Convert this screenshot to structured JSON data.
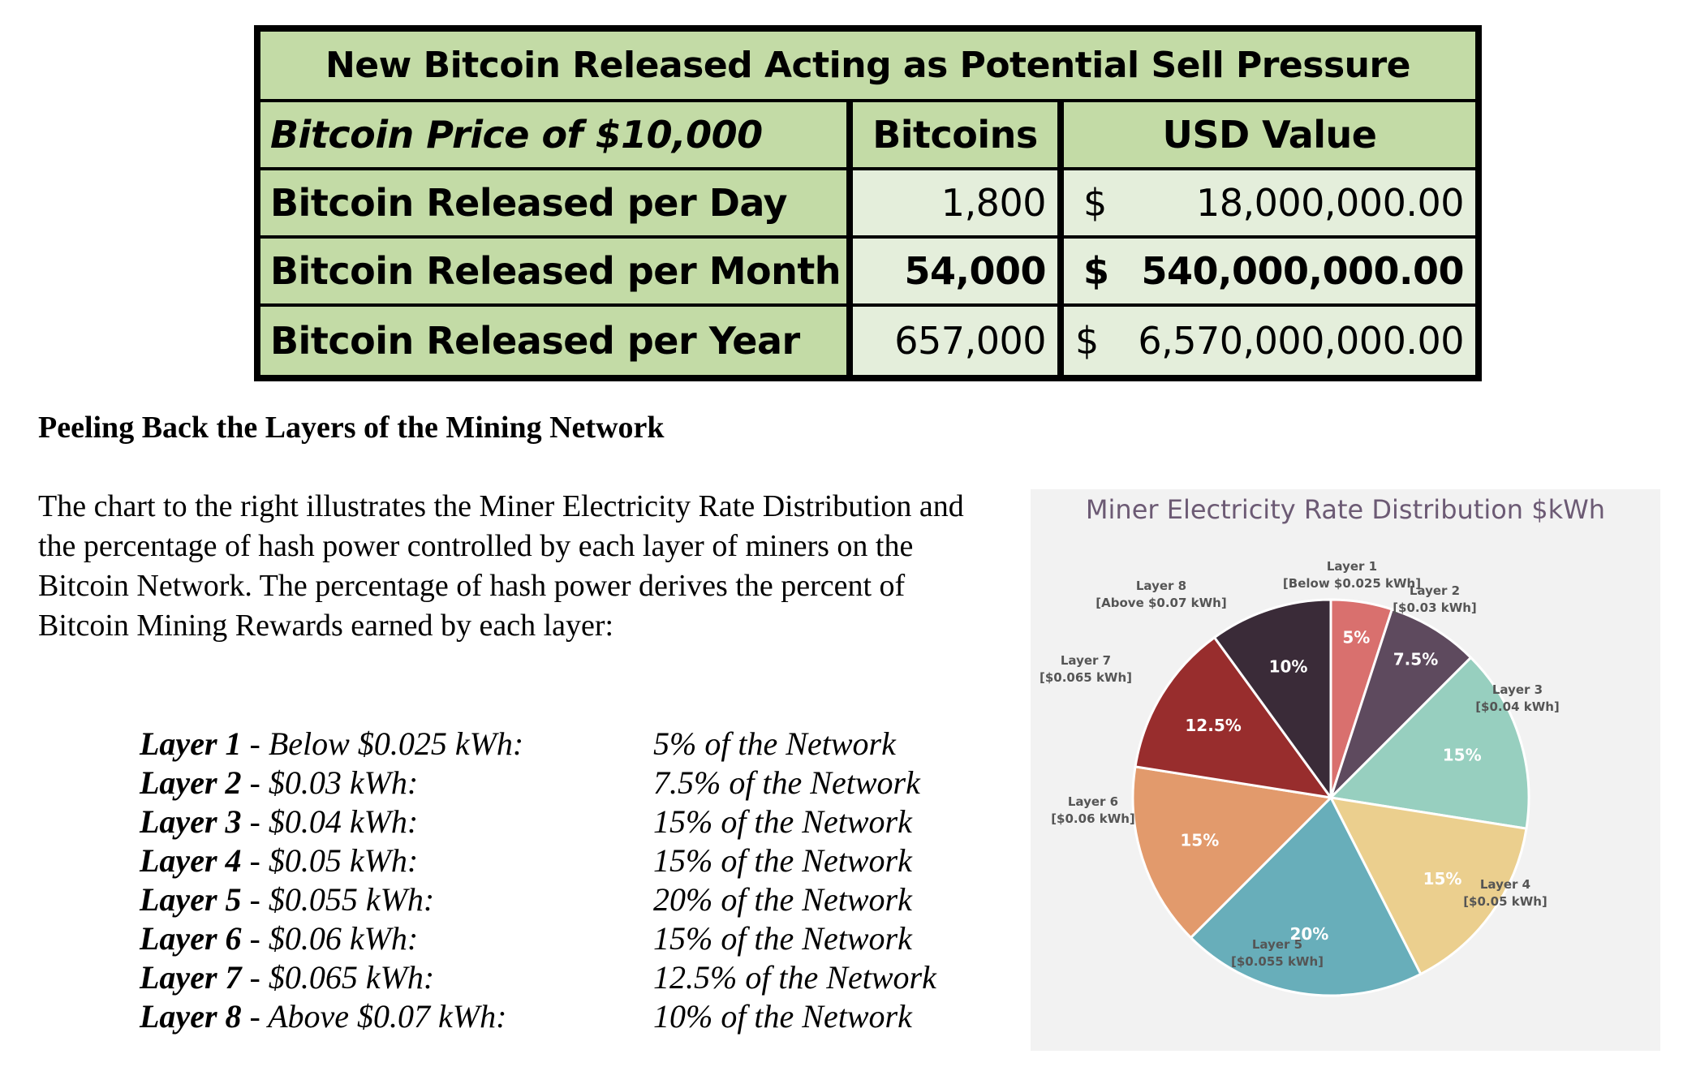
{
  "table": {
    "title": "New Bitcoin Released Acting as Potential Sell Pressure",
    "header": {
      "label": "Bitcoin Price of $10,000",
      "col_bitcoins": "Bitcoins",
      "col_usd": "USD Value"
    },
    "rows": [
      {
        "label": "Bitcoin Released per Day",
        "bitcoins": "1,800",
        "currency": "$",
        "usd": "18,000,000.00"
      },
      {
        "label": "Bitcoin Released per Month",
        "bitcoins": "54,000",
        "currency": "$",
        "usd": "540,000,000.00"
      },
      {
        "label": "Bitcoin Released per Year",
        "bitcoins": "657,000",
        "currency": "$",
        "usd": "6,570,000,000.00"
      }
    ],
    "colors": {
      "header_green": "#c3dba6",
      "cell_light": "#e4eedb"
    }
  },
  "section": {
    "heading": "Peeling Back the Layers of the Mining Network",
    "paragraph": "The chart to the right illustrates the Miner Electricity Rate Distribution and the percentage of hash power controlled by each layer of miners on the Bitcoin Network. The percentage of hash power derives the percent of Bitcoin Mining Rewards earned by each layer:"
  },
  "layers": [
    {
      "name": "Layer 1",
      "rate": " - Below $0.025 kWh:",
      "share": "5% of the Network"
    },
    {
      "name": "Layer 2",
      "rate": " - $0.03 kWh:",
      "share": "7.5% of the Network"
    },
    {
      "name": "Layer 3",
      "rate": " - $0.04 kWh:",
      "share": "15% of the Network"
    },
    {
      "name": "Layer 4",
      "rate": " - $0.05 kWh:",
      "share": "15% of the Network"
    },
    {
      "name": "Layer 5",
      "rate": " - $0.055 kWh:",
      "share": "20% of the Network"
    },
    {
      "name": "Layer 6",
      "rate": " - $0.06 kWh:",
      "share": "15% of the Network"
    },
    {
      "name": "Layer 7",
      "rate": " - $0.065 kWh:",
      "share": "12.5% of the Network"
    },
    {
      "name": "Layer 8",
      "rate": " - Above $0.07 kWh:",
      "share": "10% of the Network"
    }
  ],
  "chart_data": {
    "type": "pie",
    "title": "Miner Electricity Rate Distribution $kWh",
    "slices": [
      {
        "name": "Layer 1",
        "sub": "[Below $0.025 kWh]",
        "value": 5,
        "label": "5%",
        "color": "#d9706e"
      },
      {
        "name": "Layer 2",
        "sub": "[$0.03 kWh]",
        "value": 7.5,
        "label": "7.5%",
        "color": "#5e4a5e"
      },
      {
        "name": "Layer 3",
        "sub": "[$0.04 kWh]",
        "value": 15,
        "label": "15%",
        "color": "#97cfbf"
      },
      {
        "name": "Layer 4",
        "sub": "[$0.05 kWh]",
        "value": 15,
        "label": "15%",
        "color": "#ebcf8e"
      },
      {
        "name": "Layer 5",
        "sub": "[$0.055 kWh]",
        "value": 20,
        "label": "20%",
        "color": "#68aeba"
      },
      {
        "name": "Layer 6",
        "sub": "[$0.06 kWh]",
        "value": 15,
        "label": "15%",
        "color": "#e29a6c"
      },
      {
        "name": "Layer 7",
        "sub": "[$0.065 kWh]",
        "value": 12.5,
        "label": "12.5%",
        "color": "#982d2d"
      },
      {
        "name": "Layer 8",
        "sub": "[Above $0.07 kWh]",
        "value": 10,
        "label": "10%",
        "color": "#3a2b38"
      }
    ],
    "start": "12 o'clock",
    "direction": "clockwise",
    "legend": "none",
    "background": "#f2f2f2",
    "title_color": "#6c5a74"
  }
}
